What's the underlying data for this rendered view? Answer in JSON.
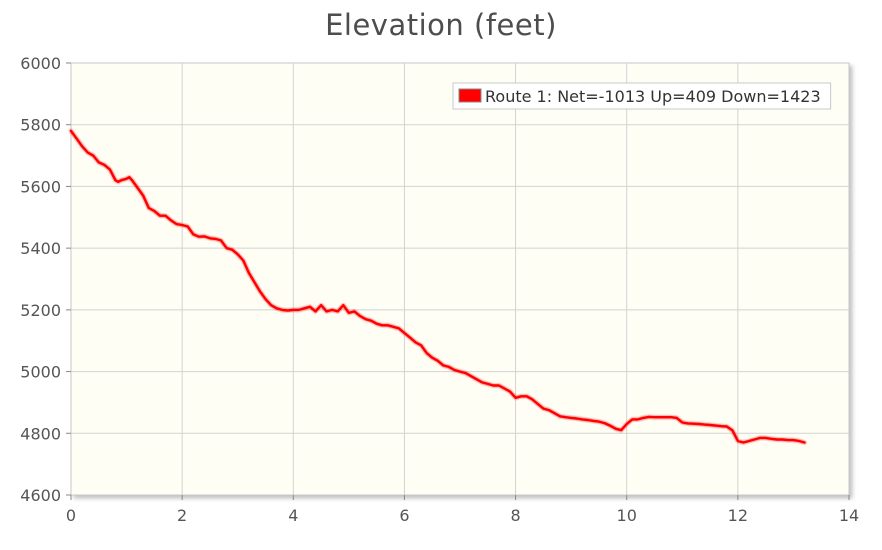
{
  "chart_data": {
    "type": "line",
    "title": "Elevation (feet)",
    "xlabel": "",
    "ylabel": "",
    "xlim": [
      0,
      14
    ],
    "ylim": [
      4600,
      6000
    ],
    "x_ticks": [
      "0",
      "2",
      "4",
      "6",
      "8",
      "10",
      "12",
      "14"
    ],
    "y_ticks": [
      "4600",
      "4800",
      "5000",
      "5200",
      "5400",
      "5600",
      "5800",
      "6000"
    ],
    "grid": true,
    "legend_position": "top-right",
    "series": [
      {
        "name": "Route 1: Net=-1013 Up=409 Down=1423",
        "color": "#ff0000",
        "x": [
          0,
          0.1,
          0.2,
          0.3,
          0.4,
          0.5,
          0.6,
          0.7,
          0.8,
          0.85,
          0.9,
          1.0,
          1.05,
          1.1,
          1.2,
          1.3,
          1.4,
          1.5,
          1.6,
          1.7,
          1.8,
          1.9,
          2.0,
          2.1,
          2.2,
          2.3,
          2.4,
          2.5,
          2.6,
          2.7,
          2.8,
          2.9,
          3.0,
          3.1,
          3.2,
          3.3,
          3.4,
          3.5,
          3.6,
          3.7,
          3.8,
          3.9,
          4.0,
          4.1,
          4.2,
          4.3,
          4.4,
          4.5,
          4.55,
          4.6,
          4.7,
          4.8,
          4.9,
          5.0,
          5.1,
          5.2,
          5.3,
          5.4,
          5.5,
          5.6,
          5.7,
          5.8,
          5.9,
          6.0,
          6.1,
          6.2,
          6.3,
          6.4,
          6.5,
          6.6,
          6.7,
          6.8,
          6.9,
          7.0,
          7.1,
          7.2,
          7.3,
          7.4,
          7.5,
          7.6,
          7.7,
          7.8,
          7.9,
          8.0,
          8.1,
          8.2,
          8.3,
          8.4,
          8.5,
          8.6,
          8.7,
          8.8,
          8.9,
          9.0,
          9.1,
          9.2,
          9.3,
          9.4,
          9.5,
          9.6,
          9.7,
          9.8,
          9.9,
          10.0,
          10.1,
          10.2,
          10.3,
          10.4,
          10.5,
          10.6,
          10.7,
          10.8,
          10.9,
          11.0,
          11.1,
          11.2,
          11.3,
          11.4,
          11.5,
          11.6,
          11.7,
          11.8,
          11.9,
          12.0,
          12.1,
          12.2,
          12.3,
          12.4,
          12.5,
          12.6,
          12.7,
          12.8,
          12.9,
          13.0,
          13.1,
          13.2
        ],
        "values": [
          5780,
          5755,
          5730,
          5710,
          5700,
          5678,
          5670,
          5655,
          5620,
          5615,
          5620,
          5625,
          5630,
          5620,
          5595,
          5570,
          5530,
          5520,
          5505,
          5505,
          5490,
          5478,
          5475,
          5470,
          5445,
          5437,
          5438,
          5432,
          5430,
          5425,
          5400,
          5395,
          5380,
          5360,
          5320,
          5290,
          5260,
          5235,
          5215,
          5205,
          5200,
          5198,
          5200,
          5200,
          5205,
          5210,
          5195,
          5215,
          5205,
          5195,
          5200,
          5195,
          5215,
          5190,
          5195,
          5180,
          5170,
          5165,
          5155,
          5150,
          5150,
          5145,
          5140,
          5125,
          5110,
          5095,
          5085,
          5060,
          5045,
          5035,
          5020,
          5015,
          5005,
          5000,
          4995,
          4985,
          4975,
          4965,
          4960,
          4955,
          4955,
          4945,
          4935,
          4915,
          4920,
          4920,
          4910,
          4895,
          4880,
          4875,
          4865,
          4855,
          4852,
          4850,
          4848,
          4845,
          4843,
          4840,
          4838,
          4833,
          4825,
          4815,
          4810,
          4830,
          4845,
          4845,
          4850,
          4853,
          4852,
          4852,
          4852,
          4852,
          4850,
          4835,
          4832,
          4831,
          4830,
          4828,
          4827,
          4825,
          4823,
          4822,
          4810,
          4775,
          4770,
          4775,
          4780,
          4785,
          4785,
          4782,
          4780,
          4780,
          4778,
          4778,
          4775,
          4770
        ]
      }
    ]
  }
}
